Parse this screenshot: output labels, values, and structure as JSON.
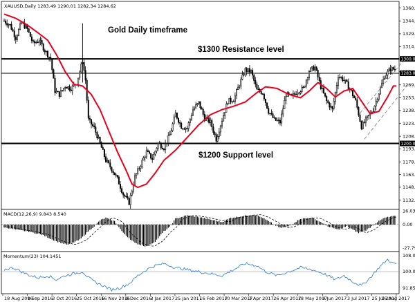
{
  "chart_data": [
    {
      "type": "candlestick",
      "panel": "price",
      "symbol_header": "XAUUSD,Daily  1283.49 1290.01 1282.34 1284.62",
      "title": "Gold Daily timeframe",
      "annotations": [
        {
          "text": "$1300 Resistance level",
          "level": 1300
        },
        {
          "text": "$1200 Support level",
          "level": 1200
        }
      ],
      "horizontal_levels": [
        1300,
        1283,
        1200
      ],
      "current_price_badge": "1283.00",
      "resistance_badge": "1300.00",
      "support_badge": "1200.00",
      "y_ticks": [
        "1360.15",
        "1344.95",
        "1329.65",
        "1314.70",
        "1300.00",
        "1284.75",
        "1269.25",
        "1253.95",
        "1238.90",
        "1223.60",
        "1208.55",
        "1193.65",
        "1178.25",
        "1163.20",
        "1148.20",
        "1132.90"
      ],
      "ylim": [
        1122,
        1368
      ],
      "x_tick_labels": [
        "18 Aug 2016",
        "9 Sep 2016",
        "3 Oct 2016",
        "25 Oct 2016",
        "16 Nov 2016",
        "8 Dec 2016",
        "3 Jan 2017",
        "25 Jan 2017",
        "16 Feb 2017",
        "10 Mar 2017",
        "3 Apr 2017",
        "26 Apr 2017",
        "18 May 2017",
        "9 Jun 2017",
        "3 Jul 2017",
        "25 Jul 2017",
        "16 Aug 2017"
      ],
      "close_path": [
        [
          0,
          1345
        ],
        [
          4,
          1340
        ],
        [
          8,
          1325
        ],
        [
          12,
          1343
        ],
        [
          16,
          1335
        ],
        [
          20,
          1318
        ],
        [
          24,
          1322
        ],
        [
          28,
          1310
        ],
        [
          32,
          1300
        ],
        [
          35,
          1262
        ],
        [
          38,
          1258
        ],
        [
          42,
          1268
        ],
        [
          46,
          1265
        ],
        [
          50,
          1272
        ],
        [
          54,
          1298
        ],
        [
          56,
          1275
        ],
        [
          58,
          1228
        ],
        [
          62,
          1218
        ],
        [
          66,
          1200
        ],
        [
          70,
          1180
        ],
        [
          74,
          1170
        ],
        [
          78,
          1158
        ],
        [
          82,
          1140
        ],
        [
          86,
          1130
        ],
        [
          90,
          1160
        ],
        [
          94,
          1175
        ],
        [
          98,
          1190
        ],
        [
          102,
          1182
        ],
        [
          106,
          1200
        ],
        [
          110,
          1195
        ],
        [
          114,
          1210
        ],
        [
          118,
          1235
        ],
        [
          122,
          1220
        ],
        [
          126,
          1218
        ],
        [
          130,
          1240
        ],
        [
          134,
          1248
        ],
        [
          138,
          1230
        ],
        [
          142,
          1225
        ],
        [
          146,
          1205
        ],
        [
          150,
          1228
        ],
        [
          154,
          1250
        ],
        [
          158,
          1252
        ],
        [
          162,
          1270
        ],
        [
          166,
          1287
        ],
        [
          170,
          1285
        ],
        [
          174,
          1263
        ],
        [
          178,
          1260
        ],
        [
          182,
          1238
        ],
        [
          186,
          1228
        ],
        [
          190,
          1225
        ],
        [
          194,
          1258
        ],
        [
          198,
          1255
        ],
        [
          202,
          1262
        ],
        [
          206,
          1265
        ],
        [
          210,
          1286
        ],
        [
          214,
          1290
        ],
        [
          218,
          1267
        ],
        [
          222,
          1250
        ],
        [
          226,
          1240
        ],
        [
          230,
          1280
        ],
        [
          234,
          1275
        ],
        [
          238,
          1265
        ],
        [
          242,
          1250
        ],
        [
          246,
          1220
        ],
        [
          250,
          1230
        ],
        [
          254,
          1240
        ],
        [
          258,
          1260
        ],
        [
          262,
          1280
        ],
        [
          266,
          1288
        ]
      ],
      "series": [
        {
          "type": "line",
          "color": "#e8001c",
          "values": [
            [
              0,
              1353
            ],
            [
              8,
              1348
            ],
            [
              16,
              1340
            ],
            [
              24,
              1330
            ],
            [
              30,
              1322
            ],
            [
              36,
              1305
            ],
            [
              42,
              1285
            ],
            [
              48,
              1270
            ],
            [
              54,
              1268
            ],
            [
              60,
              1258
            ],
            [
              66,
              1240
            ],
            [
              72,
              1215
            ],
            [
              78,
              1190
            ],
            [
              84,
              1168
            ],
            [
              88,
              1152
            ],
            [
              92,
              1148
            ],
            [
              98,
              1152
            ],
            [
              104,
              1165
            ],
            [
              110,
              1180
            ],
            [
              118,
              1192
            ],
            [
              126,
              1207
            ],
            [
              134,
              1222
            ],
            [
              142,
              1234
            ],
            [
              150,
              1240
            ],
            [
              158,
              1244
            ],
            [
              166,
              1249
            ],
            [
              174,
              1260
            ],
            [
              180,
              1267
            ],
            [
              188,
              1265
            ],
            [
              196,
              1258
            ],
            [
              204,
              1254
            ],
            [
              210,
              1262
            ],
            [
              216,
              1272
            ],
            [
              222,
              1265
            ],
            [
              228,
              1255
            ],
            [
              234,
              1262
            ],
            [
              240,
              1265
            ],
            [
              246,
              1250
            ],
            [
              252,
              1235
            ],
            [
              258,
              1238
            ],
            [
              264,
              1255
            ],
            [
              268,
              1268
            ]
          ]
        }
      ],
      "channel": {
        "color": "#888888",
        "dashed": true,
        "upper": [
          [
            245,
            1236
          ],
          [
            276,
            1300
          ]
        ],
        "lower": [
          [
            248,
            1205
          ],
          [
            278,
            1270
          ]
        ]
      }
    },
    {
      "type": "bar",
      "panel": "macd",
      "header": "MACD(12,26,9) 9.843 8.540",
      "y_ticks": [
        "16.034",
        "0.00",
        "-27.797"
      ],
      "ylim": [
        -32,
        18
      ],
      "values_profile": [
        [
          0,
          -3
        ],
        [
          8,
          -6
        ],
        [
          16,
          -8
        ],
        [
          26,
          -12
        ],
        [
          36,
          -20
        ],
        [
          44,
          -24
        ],
        [
          52,
          -18
        ],
        [
          58,
          -8
        ],
        [
          62,
          -2
        ],
        [
          66,
          5
        ],
        [
          70,
          8
        ],
        [
          76,
          4
        ],
        [
          82,
          -10
        ],
        [
          90,
          -22
        ],
        [
          98,
          -26
        ],
        [
          104,
          -20
        ],
        [
          110,
          -8
        ],
        [
          114,
          -3
        ],
        [
          118,
          7
        ],
        [
          126,
          11
        ],
        [
          134,
          9
        ],
        [
          142,
          6
        ],
        [
          150,
          3
        ],
        [
          156,
          8
        ],
        [
          164,
          10
        ],
        [
          172,
          12
        ],
        [
          178,
          8
        ],
        [
          184,
          2
        ],
        [
          190,
          -4
        ],
        [
          196,
          -2
        ],
        [
          204,
          7
        ],
        [
          212,
          8
        ],
        [
          218,
          3
        ],
        [
          224,
          -3
        ],
        [
          230,
          -6
        ],
        [
          236,
          -2
        ],
        [
          244,
          -10
        ],
        [
          250,
          -6
        ],
        [
          256,
          2
        ],
        [
          262,
          8
        ],
        [
          268,
          10
        ]
      ],
      "signal_color": "#000000"
    },
    {
      "type": "line",
      "panel": "momentum",
      "header": "Momentum(23) 104.1451",
      "y_ticks": [
        "108.0674",
        "100.00",
        "91.8559"
      ],
      "ylim": [
        89,
        110
      ],
      "color": "#3a86d9",
      "values_profile": [
        [
          0,
          101
        ],
        [
          6,
          102
        ],
        [
          12,
          100
        ],
        [
          18,
          98
        ],
        [
          24,
          97
        ],
        [
          30,
          98
        ],
        [
          36,
          96
        ],
        [
          42,
          98
        ],
        [
          48,
          99
        ],
        [
          54,
          100
        ],
        [
          58,
          97
        ],
        [
          62,
          95
        ],
        [
          68,
          93
        ],
        [
          74,
          91
        ],
        [
          80,
          92
        ],
        [
          86,
          94
        ],
        [
          92,
          98
        ],
        [
          98,
          101
        ],
        [
          104,
          103
        ],
        [
          110,
          104
        ],
        [
          118,
          102
        ],
        [
          126,
          101
        ],
        [
          134,
          100
        ],
        [
          142,
          99
        ],
        [
          150,
          98
        ],
        [
          158,
          101
        ],
        [
          166,
          104
        ],
        [
          174,
          103
        ],
        [
          180,
          100
        ],
        [
          188,
          98
        ],
        [
          196,
          100
        ],
        [
          204,
          102
        ],
        [
          212,
          101
        ],
        [
          220,
          99
        ],
        [
          228,
          96
        ],
        [
          234,
          98
        ],
        [
          240,
          95
        ],
        [
          246,
          93
        ],
        [
          252,
          97
        ],
        [
          258,
          102
        ],
        [
          264,
          106
        ],
        [
          268,
          104
        ]
      ]
    }
  ]
}
